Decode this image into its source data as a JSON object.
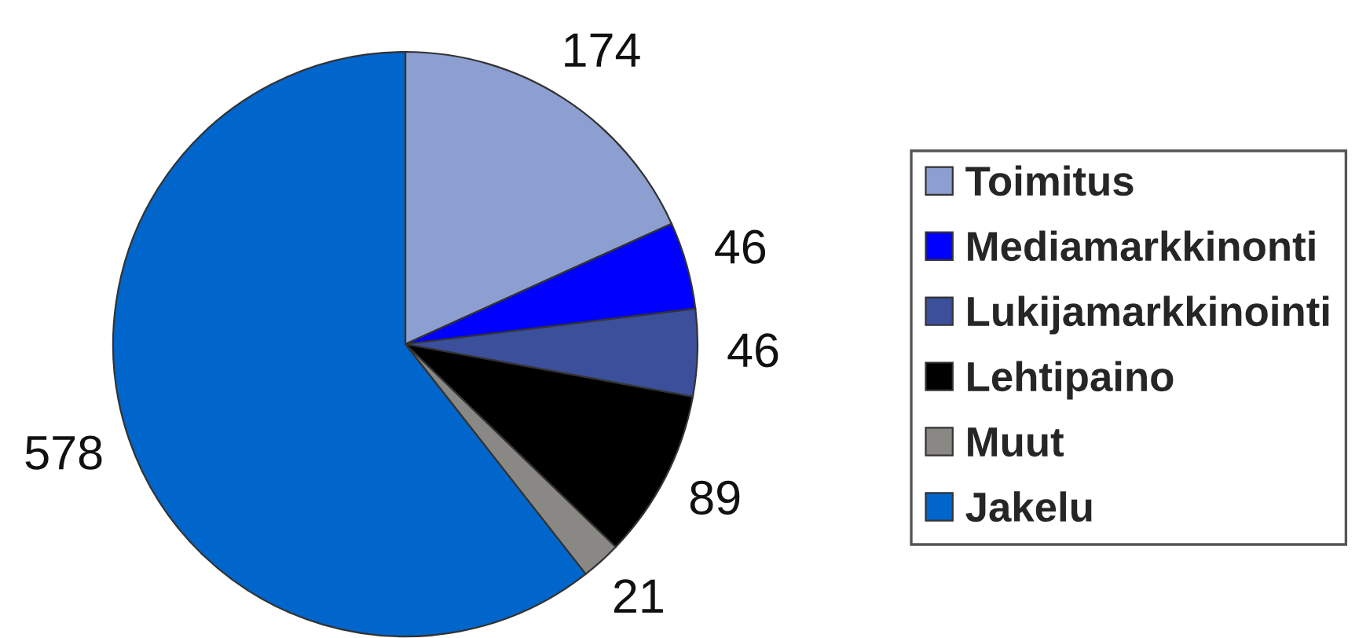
{
  "chart_data": {
    "type": "pie",
    "categories": [
      "Toimitus",
      "Mediamarkkinonti",
      "Lukijamarkkinointi",
      "Lehtipaino",
      "Muut",
      "Jakelu"
    ],
    "values": [
      174,
      46,
      46,
      89,
      21,
      578
    ],
    "colors": [
      "#8c9fd0",
      "#0000ff",
      "#3b4f9b",
      "#000000",
      "#8a8884",
      "#0066cc"
    ],
    "data_labels": true,
    "legend": "right"
  }
}
